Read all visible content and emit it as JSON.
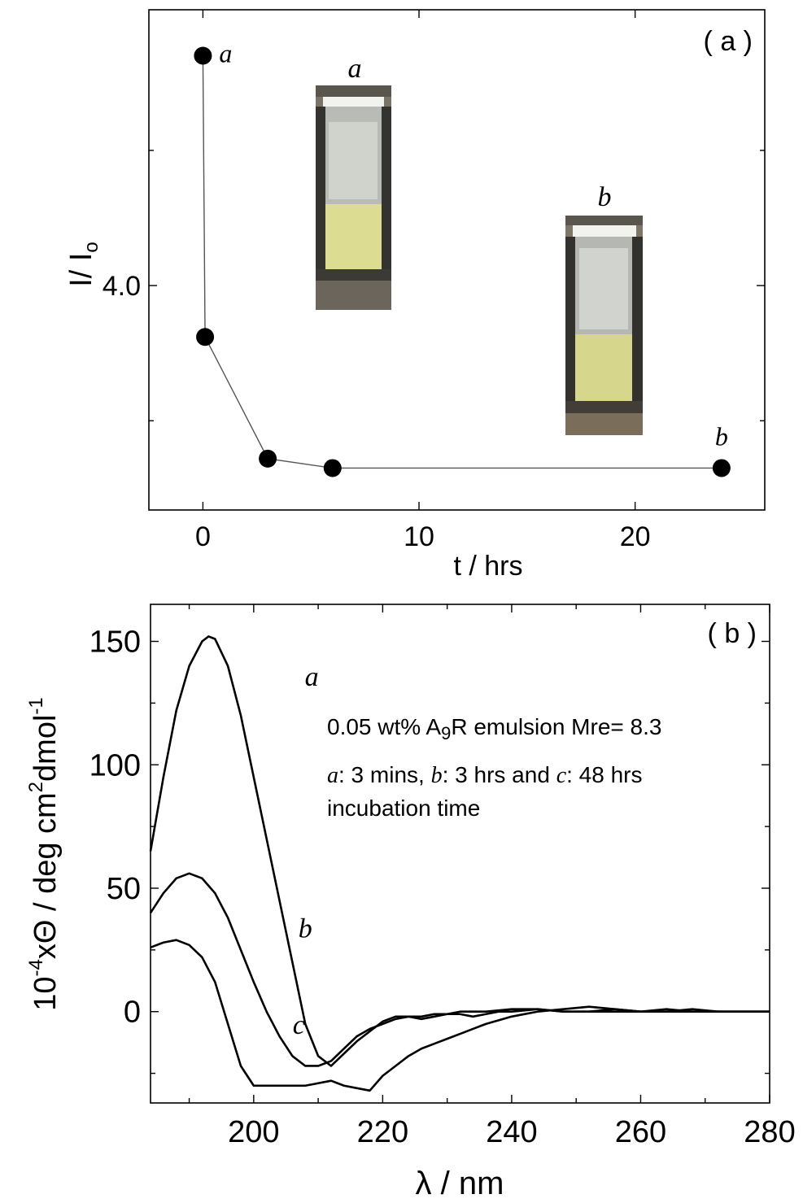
{
  "chart_data": [
    {
      "panel_label": "( a )",
      "type": "line",
      "xlabel": "t / hrs",
      "ylabel": "I/ I",
      "ylabel_sub": "o",
      "xlim": [
        -2.5,
        26
      ],
      "ylim": [
        2.34,
        6.04
      ],
      "xticks": [
        0,
        10,
        20
      ],
      "xtick_labels": [
        "0",
        "10",
        "20"
      ],
      "yticks_major": [
        4.0
      ],
      "ytick_labels": [
        "4.0"
      ],
      "yticks_minor": [
        3.0,
        5.0
      ],
      "grid": false,
      "series": [
        {
          "x": [
            0,
            0.1,
            3,
            6,
            24
          ],
          "y": [
            5.7,
            3.62,
            2.72,
            2.65,
            2.65
          ]
        }
      ],
      "point_labels": [
        {
          "text": "a",
          "x": 0
        },
        {
          "text": "b",
          "x": 24
        }
      ],
      "inset_photos": [
        {
          "label": "a"
        },
        {
          "label": "b"
        }
      ]
    },
    {
      "panel_label": "( b )",
      "type": "line",
      "xlabel": "λ / nm",
      "ylabel": "10-4xΘ / deg cm2dmol-1",
      "ylabel_parts": {
        "p1": "10",
        "e1": "-4",
        "p2": "xΘ / deg cm",
        "e2": "2",
        "p3": "dmol",
        "e3": "-1"
      },
      "xlim": [
        184,
        280
      ],
      "ylim": [
        -37,
        165
      ],
      "xticks": [
        200,
        220,
        240,
        260,
        280
      ],
      "xtick_labels": [
        "200",
        "220",
        "240",
        "260",
        "280"
      ],
      "yticks": [
        0,
        50,
        100,
        150
      ],
      "ytick_labels": [
        "0",
        "50",
        "100",
        "150"
      ],
      "grid": false,
      "annotation": {
        "line1_pre": "0.05 wt% A",
        "line1_sub": "9",
        "line1_post": "R emulsion Mre= 8.3",
        "line2_a": "a",
        "line2_t1": ": 3 mins, ",
        "line2_b": "b",
        "line2_t2": ": 3 hrs and ",
        "line2_c": "c",
        "line2_t3": ": 48 hrs",
        "line3": "incubation time"
      },
      "series": [
        {
          "name": "a",
          "x": [
            184,
            186,
            188,
            190,
            192,
            193,
            194,
            196,
            198,
            200,
            202,
            204,
            206,
            208,
            210,
            212,
            214,
            216,
            218,
            220,
            222,
            224,
            226,
            228,
            230,
            232,
            234,
            236,
            238,
            240,
            244,
            248,
            252,
            256,
            260,
            264,
            268,
            272,
            276,
            280
          ],
          "y": [
            65,
            95,
            122,
            140,
            150,
            152,
            151,
            140,
            120,
            95,
            70,
            45,
            20,
            -5,
            -18,
            -22,
            -17,
            -12,
            -8,
            -4,
            -2,
            -2,
            -3,
            -2,
            -1,
            -1,
            -2,
            -1,
            0,
            0,
            1,
            0,
            0,
            1,
            0,
            0,
            1,
            0,
            0,
            0
          ]
        },
        {
          "name": "b",
          "x": [
            184,
            186,
            188,
            190,
            192,
            194,
            196,
            198,
            200,
            202,
            204,
            206,
            208,
            210,
            212,
            214,
            216,
            218,
            220,
            222,
            224,
            226,
            228,
            230,
            232,
            236,
            240,
            244,
            248,
            252,
            256,
            260,
            264,
            268,
            272,
            276,
            280
          ],
          "y": [
            40,
            48,
            54,
            56,
            54,
            48,
            38,
            25,
            12,
            0,
            -10,
            -18,
            -22,
            -22,
            -20,
            -15,
            -10,
            -7,
            -5,
            -3,
            -2,
            -2,
            -1,
            -1,
            0,
            0,
            1,
            1,
            0,
            0,
            0,
            0,
            1,
            0,
            0,
            0,
            0
          ]
        },
        {
          "name": "c",
          "x": [
            184,
            186,
            188,
            190,
            192,
            194,
            196,
            198,
            200,
            202,
            204,
            206,
            208,
            210,
            212,
            214,
            216,
            218,
            220,
            222,
            224,
            226,
            228,
            230,
            232,
            234,
            236,
            240,
            244,
            248,
            252,
            256,
            260,
            264,
            268,
            272,
            276,
            280
          ],
          "y": [
            26,
            28,
            29,
            27,
            22,
            12,
            -5,
            -22,
            -30,
            -30,
            -30,
            -30,
            -30,
            -29,
            -28,
            -30,
            -31,
            -32,
            -26,
            -22,
            -18,
            -15,
            -13,
            -11,
            -9,
            -7,
            -5,
            -2,
            0,
            1,
            2,
            1,
            0,
            0,
            0,
            0,
            0,
            0
          ]
        }
      ],
      "curve_labels": [
        {
          "text": "a",
          "x": 209,
          "y": 132
        },
        {
          "text": "b",
          "x": 208,
          "y": 30
        },
        {
          "text": "c",
          "x": 207,
          "y": -9
        }
      ]
    }
  ]
}
